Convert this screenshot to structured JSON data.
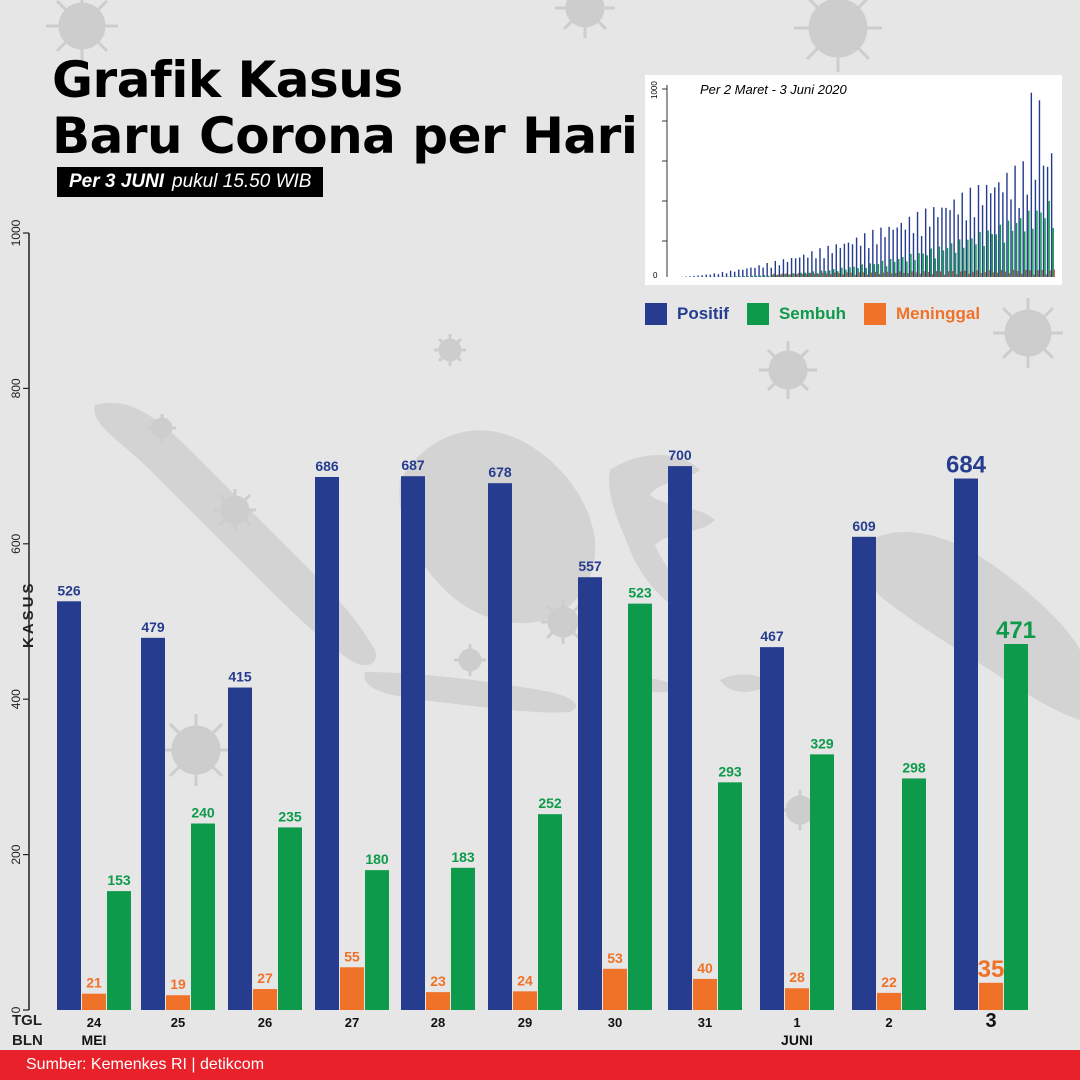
{
  "header": {
    "title_line1": "Grafik Kasus",
    "title_line2": "Baru Corona per Hari",
    "subtitle_bold": "Per 3 JUNI",
    "subtitle_rest": "pukul 15.50 WIB"
  },
  "inset": {
    "caption": "Per 2 Maret - 3 Juni 2020",
    "y_top_label": "1000",
    "y_bottom_label": "0"
  },
  "legend": [
    {
      "label": "Positif",
      "color": "#263d8f"
    },
    {
      "label": "Sembuh",
      "color": "#0d9a4a"
    },
    {
      "label": "Meninggal",
      "color": "#f07228"
    }
  ],
  "footer": {
    "source": "Sumber: Kemenkes RI | detikcom"
  },
  "colors": {
    "positif": "#263d8f",
    "sembuh": "#0d9a4a",
    "meninggal": "#f07228",
    "background": "#e6e6e7",
    "map": "#d2d2d3",
    "footer": "#e8212a"
  },
  "chart_data": {
    "type": "bar",
    "ylabel": "KASUS",
    "xlabel_row1": "TGL",
    "xlabel_row2": "BLN",
    "ylim": [
      0,
      1000
    ],
    "y_ticks": [
      "0",
      "200",
      "400",
      "600",
      "800",
      "1000"
    ],
    "categories": [
      "24",
      "25",
      "26",
      "27",
      "28",
      "29",
      "30",
      "31",
      "1",
      "2",
      "3"
    ],
    "month_labels": [
      {
        "index": 0,
        "label": "MEI"
      },
      {
        "index": 8,
        "label": "JUNI"
      }
    ],
    "series": [
      {
        "name": "Positif",
        "values": [
          526,
          479,
          415,
          686,
          687,
          678,
          557,
          700,
          467,
          609,
          684
        ]
      },
      {
        "name": "Meninggal",
        "values": [
          21,
          19,
          27,
          55,
          23,
          24,
          53,
          40,
          28,
          22,
          35
        ]
      },
      {
        "name": "Sembuh",
        "values": [
          153,
          240,
          235,
          180,
          183,
          252,
          523,
          293,
          329,
          298,
          471
        ]
      }
    ],
    "legend_position": "top-right",
    "grid": false
  }
}
